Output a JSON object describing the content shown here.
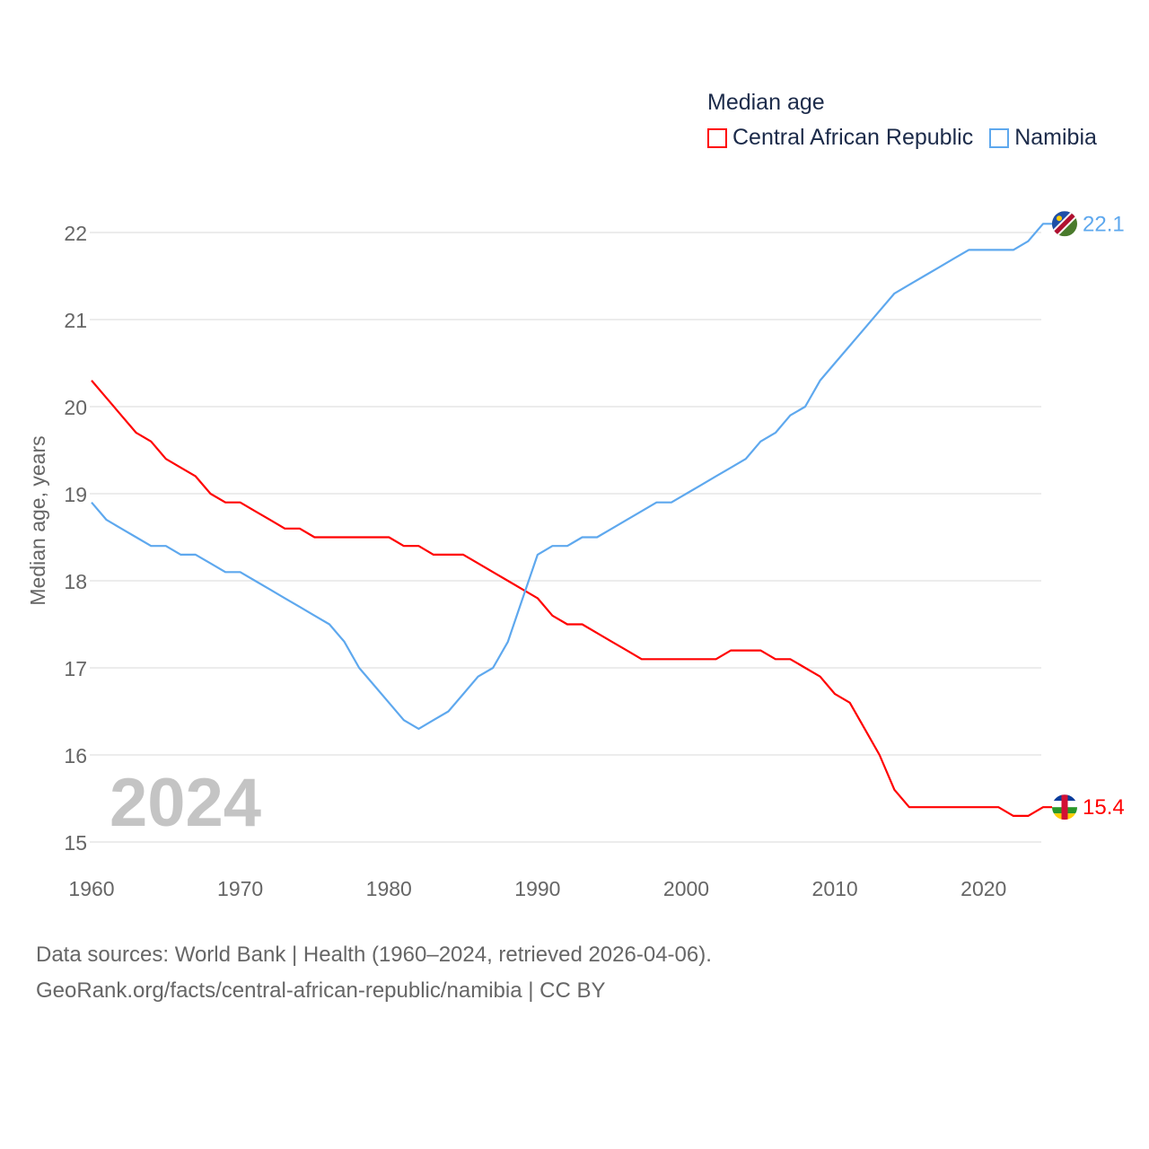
{
  "chart_data": {
    "type": "line",
    "title": "Median age",
    "xlabel": "",
    "ylabel": "Median age, years",
    "xlim": [
      1960,
      2024
    ],
    "ylim": [
      15,
      22
    ],
    "x_ticks": [
      "1960",
      "1970",
      "1980",
      "1990",
      "2000",
      "2010",
      "2020"
    ],
    "y_ticks": [
      "15",
      "16",
      "17",
      "18",
      "19",
      "20",
      "21",
      "22"
    ],
    "grid": true,
    "legend_position": "top-right",
    "year_label": "2024",
    "x": [
      1960,
      1961,
      1962,
      1963,
      1964,
      1965,
      1966,
      1967,
      1968,
      1969,
      1970,
      1971,
      1972,
      1973,
      1974,
      1975,
      1976,
      1977,
      1978,
      1979,
      1980,
      1981,
      1982,
      1983,
      1984,
      1985,
      1986,
      1987,
      1988,
      1989,
      1990,
      1991,
      1992,
      1993,
      1994,
      1995,
      1996,
      1997,
      1998,
      1999,
      2000,
      2001,
      2002,
      2003,
      2004,
      2005,
      2006,
      2007,
      2008,
      2009,
      2010,
      2011,
      2012,
      2013,
      2014,
      2015,
      2016,
      2017,
      2018,
      2019,
      2020,
      2021,
      2022,
      2023,
      2024
    ],
    "series": [
      {
        "name": "Central African Republic",
        "color": "#ff0000",
        "end_label": "15.4",
        "values": [
          20.3,
          20.1,
          19.9,
          19.7,
          19.6,
          19.4,
          19.3,
          19.2,
          19.0,
          18.9,
          18.9,
          18.8,
          18.7,
          18.6,
          18.6,
          18.5,
          18.5,
          18.5,
          18.5,
          18.5,
          18.5,
          18.4,
          18.4,
          18.3,
          18.3,
          18.3,
          18.2,
          18.1,
          18.0,
          17.9,
          17.8,
          17.6,
          17.5,
          17.5,
          17.4,
          17.3,
          17.2,
          17.1,
          17.1,
          17.1,
          17.1,
          17.1,
          17.1,
          17.2,
          17.2,
          17.2,
          17.1,
          17.1,
          17.0,
          16.9,
          16.7,
          16.6,
          16.3,
          16.0,
          15.6,
          15.4,
          15.4,
          15.4,
          15.4,
          15.4,
          15.4,
          15.4,
          15.3,
          15.3,
          15.4
        ]
      },
      {
        "name": "Namibia",
        "color": "#5ea8ee",
        "end_label": "22.1",
        "values": [
          18.9,
          18.7,
          18.6,
          18.5,
          18.4,
          18.4,
          18.3,
          18.3,
          18.2,
          18.1,
          18.1,
          18.0,
          17.9,
          17.8,
          17.7,
          17.6,
          17.5,
          17.3,
          17.0,
          16.8,
          16.6,
          16.4,
          16.3,
          16.4,
          16.5,
          16.7,
          16.9,
          17.0,
          17.3,
          17.8,
          18.3,
          18.4,
          18.4,
          18.5,
          18.5,
          18.6,
          18.7,
          18.8,
          18.9,
          18.9,
          19.0,
          19.1,
          19.2,
          19.3,
          19.4,
          19.6,
          19.7,
          19.9,
          20.0,
          20.3,
          20.5,
          20.7,
          20.9,
          21.1,
          21.3,
          21.4,
          21.5,
          21.6,
          21.7,
          21.8,
          21.8,
          21.8,
          21.8,
          21.9,
          22.1
        ]
      }
    ]
  },
  "footer": {
    "line1": "Data sources: World Bank | Health (1960–2024, retrieved 2026-04-06).",
    "line2": "GeoRank.org/facts/central-african-republic/namibia | CC BY"
  }
}
